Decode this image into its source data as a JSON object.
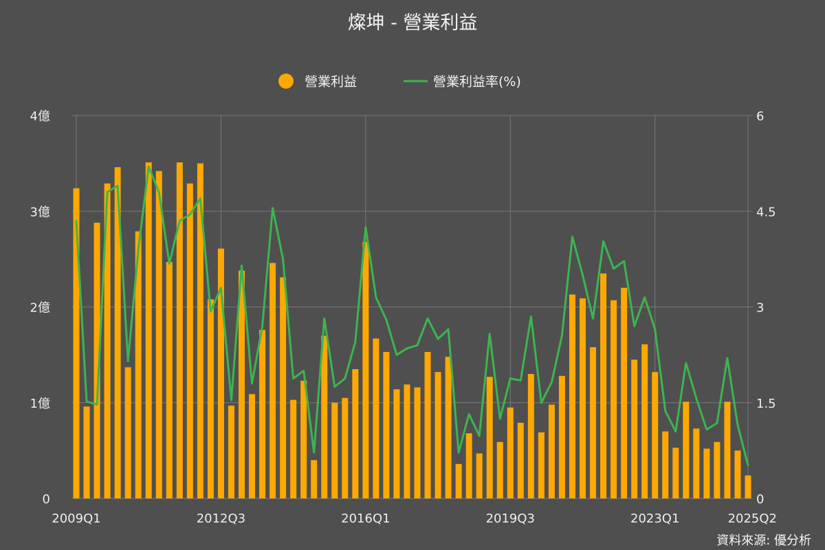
{
  "chart_data": {
    "type": "bar+line",
    "title": "燦坤 - 營業利益",
    "source": "資料來源: 優分析",
    "legend_placement": "top-center",
    "grid": true,
    "colors": {
      "bar": "#ffa800",
      "line": "#3cb550"
    },
    "series": [
      {
        "name": "營業利益",
        "kind": "bar",
        "axis": "left",
        "values": [
          3.24,
          0.96,
          2.88,
          3.29,
          3.46,
          1.37,
          2.79,
          3.51,
          3.42,
          2.47,
          3.51,
          3.29,
          3.5,
          2.08,
          2.61,
          0.97,
          2.38,
          1.09,
          1.76,
          2.46,
          2.31,
          1.03,
          1.23,
          0.4,
          1.7,
          1.0,
          1.05,
          1.35,
          2.68,
          1.67,
          1.53,
          1.14,
          1.19,
          1.16,
          1.53,
          1.32,
          1.48,
          0.36,
          0.68,
          0.47,
          1.27,
          0.59,
          0.95,
          0.79,
          1.3,
          0.69,
          0.98,
          1.28,
          2.13,
          2.09,
          1.58,
          2.35,
          2.07,
          2.2,
          1.45,
          1.61,
          1.32,
          0.7,
          0.53,
          1.01,
          0.73,
          0.52,
          0.59,
          1.01,
          0.5,
          0.24
        ]
      },
      {
        "name": "營業利益率(%)",
        "kind": "line",
        "axis": "right",
        "values": [
          4.35,
          1.52,
          1.47,
          4.8,
          4.9,
          2.15,
          3.9,
          5.2,
          4.8,
          3.68,
          4.35,
          4.45,
          4.7,
          2.93,
          3.3,
          1.54,
          3.65,
          1.8,
          2.7,
          4.55,
          3.75,
          1.88,
          2.0,
          0.72,
          2.82,
          1.75,
          1.88,
          2.45,
          4.25,
          3.15,
          2.8,
          2.25,
          2.35,
          2.4,
          2.82,
          2.5,
          2.65,
          0.72,
          1.32,
          0.98,
          2.58,
          1.25,
          1.88,
          1.85,
          2.85,
          1.5,
          1.82,
          2.55,
          4.1,
          3.5,
          2.82,
          4.03,
          3.6,
          3.72,
          2.7,
          3.15,
          2.65,
          1.37,
          1.05,
          2.12,
          1.57,
          1.08,
          1.18,
          2.2,
          1.15,
          0.52
        ]
      }
    ],
    "x_start": "2009Q1",
    "x_end": "2025Q2",
    "x_tick_labels": [
      "2009Q1",
      "2012Q3",
      "2016Q1",
      "2019Q3",
      "2023Q1",
      "2025Q2"
    ],
    "x_tick_index": [
      0,
      14,
      28,
      42,
      56,
      65
    ],
    "y_left": {
      "ylim": [
        0,
        4
      ],
      "ticks": [
        0,
        1,
        2,
        3,
        4
      ],
      "tick_labels": [
        "0",
        "1億",
        "2億",
        "3億",
        "4億"
      ]
    },
    "y_right": {
      "ylim": [
        0,
        6
      ],
      "ticks": [
        0,
        1.5,
        3,
        4.5,
        6
      ],
      "tick_labels": [
        "0",
        "1.5",
        "3",
        "4.5",
        "6"
      ]
    }
  }
}
